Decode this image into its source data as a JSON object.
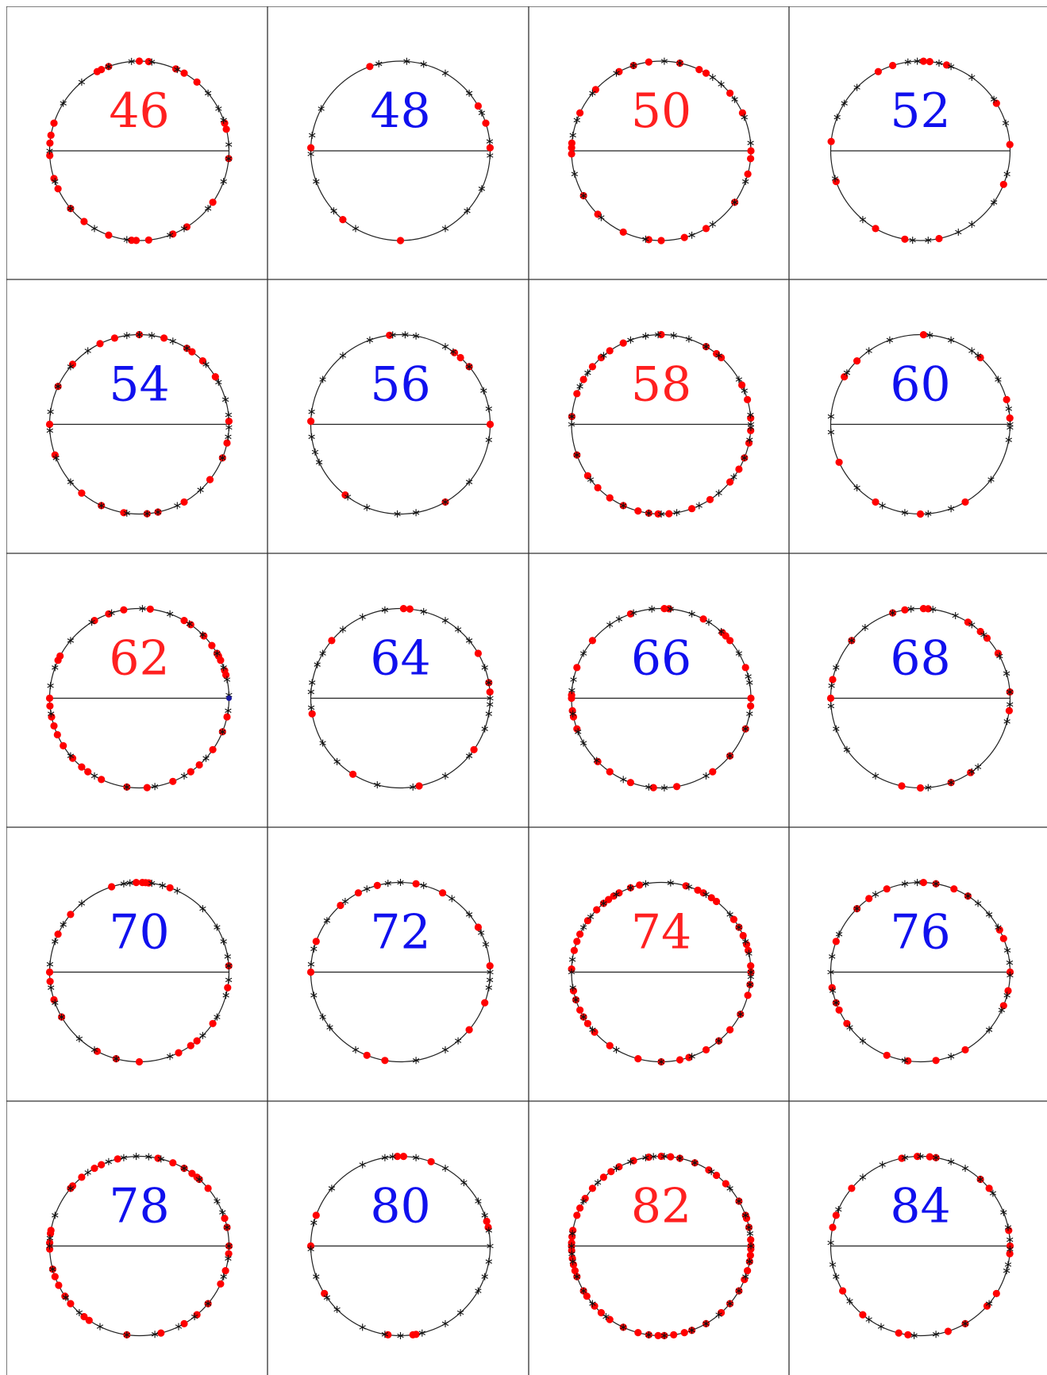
{
  "colors": {
    "red_label": "#ff2020",
    "blue_label": "#1010ee",
    "dot": "#ff0000",
    "star": "#111111",
    "line": "#222222",
    "blue_dot": "#1a1aa0"
  },
  "panels": [
    {
      "label": "46",
      "label_color": "red",
      "dots": [
        14,
        18,
        50,
        60,
        66,
        84,
        90,
        110,
        115,
        118,
        162,
        170,
        175,
        183,
        198,
        205,
        220,
        232,
        250,
        265,
        268,
        276,
        292,
        302,
        325,
        355
      ],
      "stars": [
        4,
        20,
        28,
        40,
        65,
        82,
        95,
        110,
        130,
        148,
        180,
        200,
        220,
        240,
        262,
        290,
        300,
        320,
        340,
        355
      ]
    },
    {
      "label": "48",
      "label_color": "blue",
      "dots": [
        2,
        18,
        30,
        110,
        178,
        230,
        270
      ],
      "stars": [
        6,
        25,
        40,
        60,
        75,
        86,
        104,
        152,
        170,
        182,
        200,
        222,
        240,
        300,
        318,
        335,
        357
      ]
    },
    {
      "label": "50",
      "label_color": "red",
      "dots": [
        0,
        25,
        40,
        60,
        65,
        78,
        98,
        108,
        118,
        137,
        155,
        175,
        178,
        182,
        210,
        225,
        245,
        262,
        270,
        285,
        300,
        325,
        345,
        355
      ],
      "stars": [
        5,
        22,
        35,
        48,
        55,
        78,
        88,
        108,
        120,
        140,
        160,
        170,
        195,
        210,
        228,
        260,
        290,
        305,
        325,
        340
      ]
    },
    {
      "label": "52",
      "label_color": "blue",
      "dots": [
        4,
        32,
        73,
        84,
        88,
        108,
        118,
        174,
        200,
        240,
        260,
        282,
        338
      ],
      "stars": [
        18,
        35,
        55,
        70,
        78,
        92,
        98,
        135,
        148,
        158,
        198,
        230,
        265,
        275,
        295,
        305,
        325,
        345
      ]
    },
    {
      "label": "54",
      "label_color": "blue",
      "dots": [
        2,
        32,
        45,
        54,
        58,
        74,
        90,
        106,
        116,
        138,
        155,
        180,
        200,
        230,
        245,
        260,
        275,
        282,
        300,
        322,
        338,
        348
      ],
      "stars": [
        6,
        16,
        28,
        42,
        58,
        68,
        82,
        90,
        98,
        125,
        140,
        155,
        172,
        184,
        202,
        220,
        245,
        262,
        275,
        282,
        295,
        313,
        338,
        352,
        358
      ]
    },
    {
      "label": "56",
      "label_color": "blue",
      "dots": [
        0,
        40,
        48,
        53,
        97,
        178,
        232,
        300
      ],
      "stars": [
        10,
        22,
        40,
        54,
        60,
        80,
        87,
        95,
        110,
        130,
        150,
        172,
        188,
        198,
        205,
        234,
        248,
        268,
        280,
        300,
        320,
        350
      ]
    },
    {
      "label": "58",
      "label_color": "red",
      "dots": [
        4,
        16,
        26,
        48,
        52,
        60,
        90,
        115,
        125,
        132,
        140,
        150,
        160,
        175,
        200,
        215,
        225,
        235,
        245,
        255,
        262,
        268,
        275,
        290,
        303,
        320,
        330,
        338,
        348,
        356
      ],
      "stars": [
        0,
        6,
        22,
        30,
        50,
        60,
        72,
        82,
        92,
        100,
        110,
        130,
        145,
        155,
        175,
        180,
        200,
        218,
        245,
        262,
        270,
        280,
        295,
        310,
        324,
        338,
        350,
        358
      ]
    },
    {
      "label": "60",
      "label_color": "blue",
      "dots": [
        4,
        16,
        48,
        88,
        135,
        148,
        205,
        240,
        270,
        300
      ],
      "stars": [
        0,
        10,
        30,
        50,
        55,
        70,
        84,
        110,
        125,
        145,
        175,
        185,
        225,
        245,
        260,
        275,
        290,
        322,
        350,
        358
      ]
    },
    {
      "label": "62",
      "label_color": "red",
      "dots": [
        15,
        18,
        25,
        28,
        30,
        36,
        44,
        55,
        60,
        83,
        100,
        110,
        120,
        152,
        155,
        180,
        185,
        192,
        198,
        204,
        212,
        222,
        230,
        235,
        245,
        262,
        275,
        292,
        305,
        312,
        325,
        338,
        348
      ],
      "stars": [
        2,
        12,
        20,
        30,
        45,
        56,
        70,
        88,
        108,
        122,
        140,
        160,
        172,
        190,
        220,
        240,
        262,
        280,
        300,
        318,
        338,
        352
      ],
      "blue": [
        0
      ]
    },
    {
      "label": "64",
      "label_color": "blue",
      "dots": [
        4,
        10,
        30,
        84,
        88,
        140,
        190,
        238,
        282,
        325
      ],
      "stars": [
        0,
        10,
        20,
        40,
        50,
        60,
        75,
        100,
        115,
        130,
        150,
        158,
        170,
        176,
        186,
        210,
        225,
        255,
        278,
        300,
        320,
        340,
        350,
        356
      ]
    },
    {
      "label": "66",
      "label_color": "blue",
      "dots": [
        0,
        20,
        40,
        44,
        47,
        62,
        85,
        88,
        110,
        140,
        160,
        178,
        180,
        188,
        192,
        200,
        225,
        235,
        250,
        265,
        280,
        305,
        320,
        340,
        355
      ],
      "stars": [
        10,
        14,
        30,
        48,
        58,
        70,
        84,
        96,
        108,
        118,
        125,
        150,
        168,
        175,
        190,
        202,
        210,
        224,
        245,
        262,
        272,
        300,
        320,
        340,
        350
      ]
    },
    {
      "label": "68",
      "label_color": "blue",
      "dots": [
        4,
        30,
        42,
        48,
        58,
        85,
        88,
        100,
        108,
        140,
        168,
        180,
        258,
        270,
        290,
        304,
        352
      ],
      "stars": [
        4,
        16,
        28,
        45,
        55,
        67,
        82,
        96,
        108,
        128,
        140,
        160,
        172,
        185,
        200,
        215,
        240,
        275,
        290,
        305,
        310,
        345,
        356
      ]
    },
    {
      "label": "70",
      "label_color": "blue",
      "dots": [
        4,
        70,
        84,
        86,
        88,
        92,
        108,
        140,
        155,
        180,
        186,
        198,
        210,
        242,
        255,
        270,
        296,
        305,
        310,
        325,
        350
      ],
      "stars": [
        4,
        10,
        20,
        30,
        45,
        65,
        75,
        82,
        96,
        100,
        130,
        148,
        160,
        175,
        190,
        200,
        210,
        228,
        240,
        255,
        290,
        315,
        330,
        345,
        355
      ]
    },
    {
      "label": "72",
      "label_color": "blue",
      "dots": [
        4,
        30,
        62,
        80,
        105,
        118,
        132,
        160,
        180,
        248,
        260,
        320,
        340
      ],
      "stars": [
        0,
        18,
        26,
        40,
        55,
        75,
        90,
        98,
        112,
        128,
        145,
        165,
        175,
        195,
        210,
        218,
        240,
        280,
        300,
        310,
        350,
        355
      ]
    },
    {
      "label": "74",
      "label_color": "red",
      "dots": [
        0,
        4,
        14,
        18,
        24,
        30,
        36,
        52,
        56,
        62,
        66,
        74,
        104,
        110,
        118,
        122,
        126,
        130,
        136,
        145,
        155,
        160,
        166,
        178,
        192,
        198,
        205,
        210,
        215,
        222,
        235,
        255,
        270,
        282,
        288,
        300,
        310,
        320,
        332,
        345,
        352
      ],
      "stars": [
        0,
        12,
        20,
        30,
        40,
        60,
        72,
        84,
        100,
        110,
        120,
        130,
        142,
        150,
        172,
        180,
        190,
        198,
        210,
        220,
        240,
        270,
        290,
        310,
        332,
        352,
        357
      ]
    },
    {
      "label": "76",
      "label_color": "blue",
      "dots": [
        0,
        22,
        28,
        58,
        68,
        80,
        88,
        112,
        125,
        135,
        160,
        190,
        200,
        205,
        215,
        248,
        262,
        280,
        300,
        338,
        348
      ],
      "stars": [
        6,
        14,
        30,
        40,
        50,
        58,
        80,
        92,
        100,
        120,
        135,
        155,
        170,
        180,
        192,
        200,
        218,
        230,
        260,
        290,
        320,
        335,
        345,
        358
      ]
    },
    {
      "label": "78",
      "label_color": "blue",
      "dots": [
        0,
        12,
        18,
        40,
        48,
        50,
        54,
        60,
        68,
        78,
        104,
        115,
        120,
        130,
        138,
        140,
        170,
        172,
        178,
        182,
        195,
        200,
        206,
        214,
        220,
        232,
        236,
        262,
        284,
        300,
        310,
        320,
        335,
        344,
        355
      ],
      "stars": [
        0,
        12,
        22,
        30,
        48,
        60,
        76,
        84,
        92,
        100,
        110,
        125,
        140,
        160,
        175,
        180,
        195,
        215,
        228,
        244,
        262,
        280,
        296,
        308,
        320,
        340,
        352
      ]
    },
    {
      "label": "80",
      "label_color": "blue",
      "dots": [
        12,
        16,
        70,
        88,
        92,
        160,
        180,
        212,
        262,
        278,
        280
      ],
      "stars": [
        0,
        10,
        20,
        30,
        45,
        60,
        80,
        95,
        100,
        115,
        140,
        165,
        182,
        200,
        215,
        225,
        245,
        260,
        270,
        284,
        300,
        312,
        330,
        340,
        350
      ]
    },
    {
      "label": "82",
      "label_color": "red",
      "dots": [
        0,
        4,
        12,
        18,
        20,
        30,
        44,
        52,
        58,
        68,
        78,
        84,
        90,
        98,
        108,
        118,
        124,
        130,
        140,
        148,
        155,
        160,
        170,
        174,
        178,
        180,
        183,
        188,
        192,
        196,
        200,
        210,
        214,
        222,
        228,
        235,
        245,
        255,
        262,
        268,
        272,
        278,
        285,
        290,
        300,
        312,
        320,
        330,
        338,
        344,
        350,
        354,
        358
      ],
      "stars": [
        0,
        8,
        12,
        20,
        30,
        40,
        56,
        68,
        78,
        88,
        95,
        100,
        110,
        120,
        135,
        150,
        172,
        180,
        185,
        190,
        200,
        210,
        220,
        232,
        245,
        262,
        272,
        290,
        300,
        310,
        320,
        330,
        340,
        350
      ]
    },
    {
      "label": "84",
      "label_color": "blue",
      "dots": [
        0,
        10,
        40,
        48,
        80,
        84,
        92,
        102,
        140,
        160,
        168,
        210,
        230,
        256,
        262,
        288,
        300,
        318,
        328,
        355
      ],
      "stars": [
        4,
        12,
        22,
        36,
        48,
        60,
        70,
        80,
        90,
        100,
        115,
        130,
        156,
        178,
        192,
        200,
        218,
        235,
        244,
        266,
        280,
        300,
        320,
        344,
        348,
        358
      ]
    }
  ]
}
